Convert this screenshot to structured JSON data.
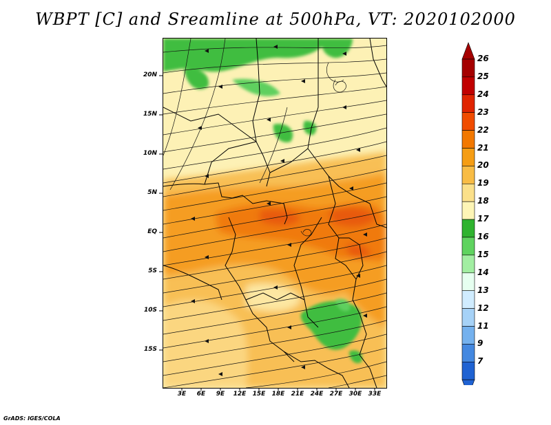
{
  "title": "WBPT [C] and Sreamline at 500hPa, VT: 2020102000",
  "footer": "GrADS: IGES/COLA",
  "map": {
    "variable": "Wet-bulb potential temperature",
    "units": "C",
    "level": "500hPa",
    "valid_time": "2020102000",
    "lat_labels": [
      "20N",
      "15N",
      "10N",
      "5N",
      "EQ",
      "5S",
      "10S",
      "15S"
    ],
    "lon_labels": [
      "3E",
      "6E",
      "9E",
      "12E",
      "15E",
      "18E",
      "21E",
      "24E",
      "27E",
      "30E",
      "33E"
    ]
  },
  "colorbar": {
    "labels": [
      "26",
      "25",
      "24",
      "23",
      "22",
      "21",
      "20",
      "19",
      "18",
      "17",
      "16",
      "15",
      "14",
      "13",
      "12",
      "11",
      "9",
      "7"
    ],
    "colors": [
      "#a50000",
      "#c10000",
      "#e02400",
      "#f04c00",
      "#f27800",
      "#f59d14",
      "#f8bc45",
      "#fbe08a",
      "#fdf5b6",
      "#2fb32f",
      "#5fd35f",
      "#a2eea2",
      "#e6fff0",
      "#d0ecff",
      "#a6d2f7",
      "#74b1ee",
      "#4488e0",
      "#1f62d2"
    ]
  }
}
